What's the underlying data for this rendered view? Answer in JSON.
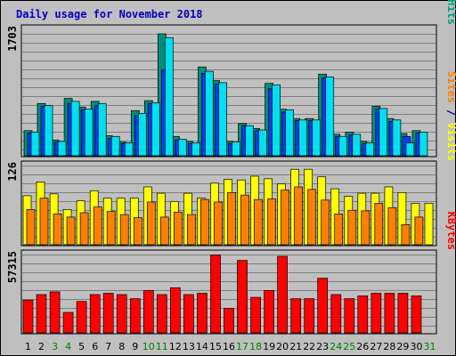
{
  "chart_data": {
    "type": "bar",
    "title": "Daily usage for November 2018",
    "x": [
      "1",
      "2",
      "3",
      "4",
      "5",
      "6",
      "7",
      "8",
      "9",
      "10",
      "11",
      "12",
      "13",
      "14",
      "15",
      "16",
      "17",
      "18",
      "19",
      "20",
      "21",
      "22",
      "23",
      "24",
      "25",
      "26",
      "27",
      "28",
      "29",
      "30",
      "31"
    ],
    "weekend_days": [
      "3",
      "4",
      "10",
      "11",
      "17",
      "18",
      "24",
      "25",
      "31"
    ],
    "panels": [
      {
        "id": "pages",
        "ymax_label": "1703",
        "ymax": 1703,
        "right_labels": [
          {
            "text": "Pages",
            "color": "#00d8e8"
          },
          {
            "text": " / ",
            "color": "#000080"
          },
          {
            "text": "Files",
            "color": "#0060ff"
          },
          {
            "text": " / ",
            "color": "#000080"
          },
          {
            "text": "Hits",
            "color": "#00a080"
          }
        ],
        "series": [
          {
            "name": "Hits",
            "color": "#00907a",
            "values": [
              350,
              730,
              220,
              800,
              680,
              760,
              280,
              190,
              630,
              770,
              1703,
              270,
              200,
              1240,
              1050,
              200,
              450,
              380,
              1010,
              650,
              520,
              520,
              1140,
              300,
              330,
              200,
              690,
              520,
              310,
              350
            ]
          },
          {
            "name": "Files",
            "color": "#0040ff",
            "values": [
              320,
              690,
              190,
              730,
              640,
              700,
              240,
              170,
              560,
              730,
              1200,
              220,
              170,
              1150,
              1000,
              170,
              420,
              350,
              940,
              610,
              490,
              490,
              1090,
              270,
              290,
              170,
              650,
              480,
              270,
              320
            ]
          },
          {
            "name": "Pages",
            "color": "#00e0f0",
            "values": [
              330,
              700,
              200,
              760,
              650,
              730,
              270,
              180,
              590,
              740,
              1650,
              230,
              180,
              1180,
              1020,
              190,
              420,
              360,
              990,
              640,
              500,
              500,
              1100,
              270,
              300,
              180,
              660,
              500,
              180,
              330
            ]
          }
        ]
      },
      {
        "id": "visits",
        "ymax_label": "126",
        "ymax": 126,
        "right_labels": [
          {
            "text": "Sites",
            "color": "#ff8000"
          },
          {
            "text": " / ",
            "color": "#000080"
          },
          {
            "text": "Visits",
            "color": "#ffff00"
          }
        ],
        "series": [
          {
            "name": "Visits",
            "color": "#ffff00",
            "values": [
              78,
              100,
              81,
              56,
              70,
              86,
              74,
              74,
              74,
              92,
              82,
              69,
              82,
              74,
              98,
              104,
              103,
              109,
              105,
              97,
              120,
              120,
              108,
              89,
              77,
              82,
              82,
              92,
              83,
              66,
              66
            ]
          },
          {
            "name": "Sites",
            "color": "#ff8000",
            "values": [
              56,
              74,
              49,
              44,
              51,
              60,
              53,
              48,
              43,
              68,
              44,
              52,
              48,
              72,
              68,
              83,
              79,
              72,
              73,
              87,
              92,
              88,
              71,
              49,
              55,
              54,
              66,
              59,
              32,
              44
            ]
          }
        ]
      },
      {
        "id": "kbytes",
        "ymax_label": "57315",
        "ymax": 57315,
        "right_labels": [
          {
            "text": "KBytes",
            "color": "#ff0000"
          }
        ],
        "series": [
          {
            "name": "KBytes",
            "color": "#ff0000",
            "values": [
              24000,
              28000,
              30000,
              15000,
              23000,
              28000,
              29000,
              28000,
              25000,
              31000,
              28000,
              33000,
              28000,
              29000,
              57000,
              18000,
              53000,
              26000,
              31000,
              56000,
              25000,
              25000,
              40000,
              28000,
              25000,
              27000,
              29000,
              29000,
              29000,
              27000
            ]
          }
        ]
      }
    ]
  }
}
